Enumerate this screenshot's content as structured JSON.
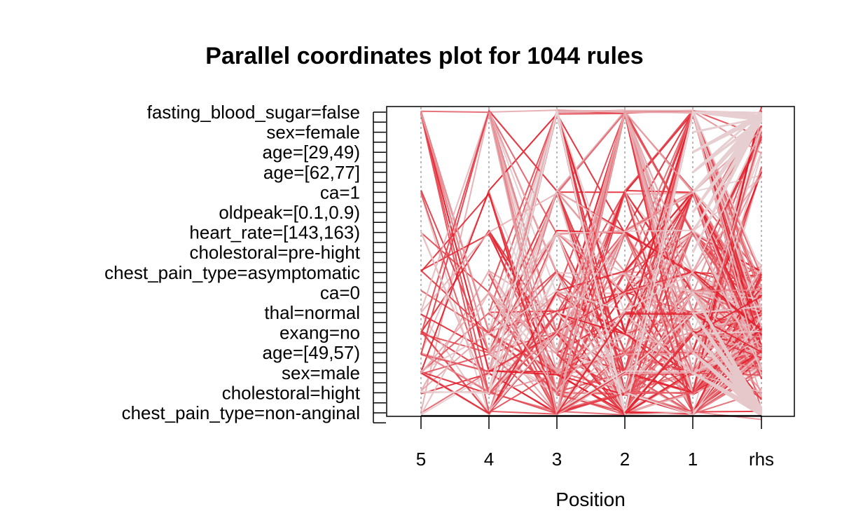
{
  "chart_data": {
    "type": "parallel-coordinates",
    "title": "Parallel coordinates plot for 1044 rules",
    "xlabel": "Position",
    "positions": [
      "5",
      "4",
      "3",
      "2",
      "1",
      "rhs"
    ],
    "items": [
      "fasting_blood_sugar=false",
      "sex=female",
      "age=[29,49)",
      "age=[62,77]",
      "ca=1",
      "oldpeak=[0.1,0.9)",
      "heart_rate=[143,163)",
      "cholestoral=pre-hight",
      "chest_pain_type=asymptomatic",
      "ca=0",
      "thal=normal",
      "exang=no",
      "age=[49,57)",
      "sex=male",
      "cholestoral=hight",
      "chest_pain_type=non-anginal"
    ],
    "n_item_slots": 16,
    "grid": "dotted vertical lines at each position",
    "line_color_scale": [
      "#e6d8da",
      "#e3121f"
    ],
    "note_shading": "lines coloured from light grey (low) to red (high)"
  }
}
